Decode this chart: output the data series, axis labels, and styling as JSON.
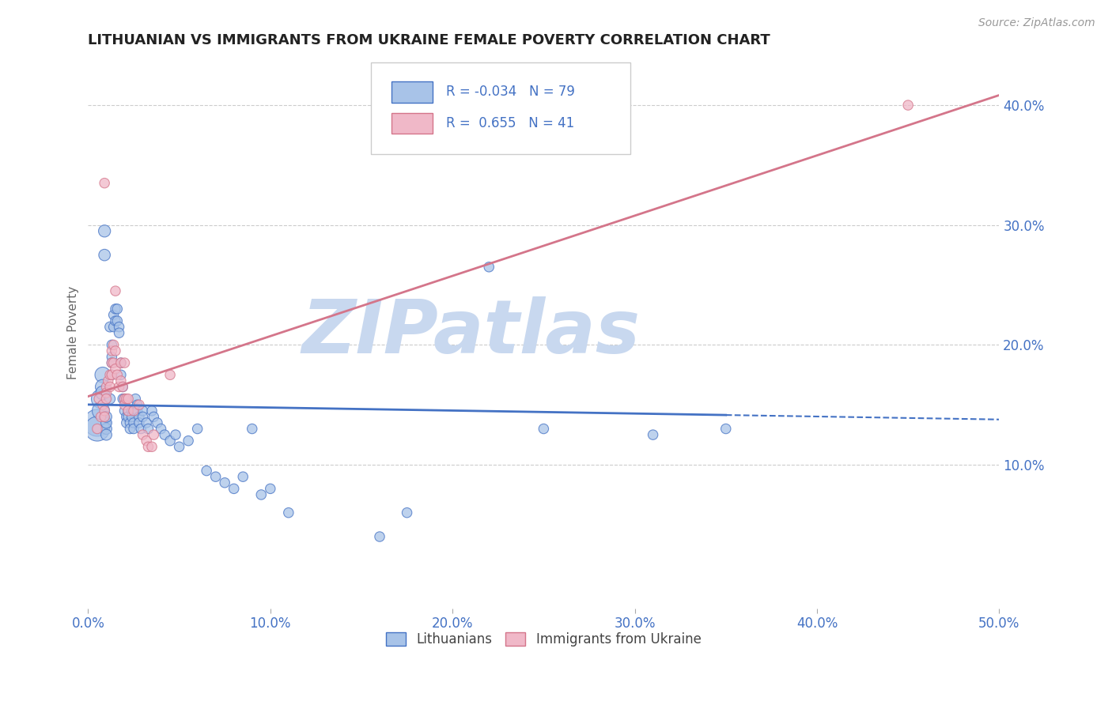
{
  "title": "LITHUANIAN VS IMMIGRANTS FROM UKRAINE FEMALE POVERTY CORRELATION CHART",
  "source": "Source: ZipAtlas.com",
  "ylabel": "Female Poverty",
  "xlim": [
    0.0,
    0.5
  ],
  "ylim": [
    -0.02,
    0.44
  ],
  "xticks": [
    0.0,
    0.1,
    0.2,
    0.3,
    0.4,
    0.5
  ],
  "xticklabels": [
    "0.0%",
    "10.0%",
    "20.0%",
    "30.0%",
    "40.0%",
    "50.0%"
  ],
  "yticks_right": [
    0.1,
    0.2,
    0.3,
    0.4
  ],
  "ytick_right_labels": [
    "10.0%",
    "20.0%",
    "30.0%",
    "40.0%"
  ],
  "blue_color": "#4472c4",
  "pink_color": "#d4758a",
  "blue_fill": "#a8c3e8",
  "pink_fill": "#f0b8c8",
  "watermark": "ZIPatlas",
  "watermark_color": "#c8d8ef",
  "grid_color": "#cccccc",
  "blue_R": -0.034,
  "pink_R": 0.655,
  "blue_N": 79,
  "pink_N": 41,
  "blue_line_solid_end": 0.35,
  "blue_scatter": [
    [
      0.005,
      0.135
    ],
    [
      0.005,
      0.13
    ],
    [
      0.007,
      0.155
    ],
    [
      0.007,
      0.145
    ],
    [
      0.008,
      0.175
    ],
    [
      0.008,
      0.165
    ],
    [
      0.008,
      0.16
    ],
    [
      0.009,
      0.295
    ],
    [
      0.009,
      0.275
    ],
    [
      0.01,
      0.13
    ],
    [
      0.01,
      0.135
    ],
    [
      0.01,
      0.125
    ],
    [
      0.01,
      0.14
    ],
    [
      0.012,
      0.155
    ],
    [
      0.012,
      0.215
    ],
    [
      0.013,
      0.2
    ],
    [
      0.013,
      0.19
    ],
    [
      0.013,
      0.185
    ],
    [
      0.013,
      0.175
    ],
    [
      0.014,
      0.225
    ],
    [
      0.014,
      0.215
    ],
    [
      0.015,
      0.23
    ],
    [
      0.015,
      0.22
    ],
    [
      0.016,
      0.23
    ],
    [
      0.016,
      0.22
    ],
    [
      0.017,
      0.215
    ],
    [
      0.017,
      0.21
    ],
    [
      0.018,
      0.185
    ],
    [
      0.018,
      0.175
    ],
    [
      0.019,
      0.165
    ],
    [
      0.019,
      0.155
    ],
    [
      0.02,
      0.155
    ],
    [
      0.02,
      0.145
    ],
    [
      0.021,
      0.14
    ],
    [
      0.021,
      0.135
    ],
    [
      0.022,
      0.145
    ],
    [
      0.022,
      0.14
    ],
    [
      0.023,
      0.135
    ],
    [
      0.023,
      0.13
    ],
    [
      0.024,
      0.145
    ],
    [
      0.024,
      0.14
    ],
    [
      0.025,
      0.135
    ],
    [
      0.025,
      0.13
    ],
    [
      0.026,
      0.155
    ],
    [
      0.026,
      0.145
    ],
    [
      0.027,
      0.15
    ],
    [
      0.027,
      0.145
    ],
    [
      0.028,
      0.14
    ],
    [
      0.028,
      0.135
    ],
    [
      0.029,
      0.13
    ],
    [
      0.03,
      0.145
    ],
    [
      0.03,
      0.14
    ],
    [
      0.032,
      0.135
    ],
    [
      0.033,
      0.13
    ],
    [
      0.035,
      0.145
    ],
    [
      0.036,
      0.14
    ],
    [
      0.038,
      0.135
    ],
    [
      0.04,
      0.13
    ],
    [
      0.042,
      0.125
    ],
    [
      0.045,
      0.12
    ],
    [
      0.048,
      0.125
    ],
    [
      0.05,
      0.115
    ],
    [
      0.055,
      0.12
    ],
    [
      0.06,
      0.13
    ],
    [
      0.065,
      0.095
    ],
    [
      0.07,
      0.09
    ],
    [
      0.075,
      0.085
    ],
    [
      0.08,
      0.08
    ],
    [
      0.085,
      0.09
    ],
    [
      0.09,
      0.13
    ],
    [
      0.095,
      0.075
    ],
    [
      0.1,
      0.08
    ],
    [
      0.11,
      0.06
    ],
    [
      0.16,
      0.04
    ],
    [
      0.175,
      0.06
    ],
    [
      0.22,
      0.265
    ],
    [
      0.25,
      0.13
    ],
    [
      0.31,
      0.125
    ],
    [
      0.35,
      0.13
    ]
  ],
  "blue_sizes": [
    600,
    500,
    300,
    250,
    200,
    180,
    160,
    120,
    110,
    100,
    100,
    100,
    100,
    90,
    85,
    80,
    80,
    80,
    80,
    80,
    80,
    80,
    80,
    80,
    80,
    80,
    80,
    80,
    80,
    80,
    80,
    80,
    80,
    80,
    80,
    80,
    80,
    80,
    80,
    80,
    80,
    80,
    80,
    80,
    80,
    80,
    80,
    80,
    80,
    80,
    80,
    80,
    80,
    80,
    80,
    80,
    80,
    80,
    80,
    80,
    80,
    80,
    80,
    80,
    80,
    80,
    80,
    80,
    80,
    80,
    80,
    80,
    80,
    80,
    80,
    80,
    80,
    80,
    80
  ],
  "pink_scatter": [
    [
      0.005,
      0.13
    ],
    [
      0.006,
      0.155
    ],
    [
      0.007,
      0.14
    ],
    [
      0.008,
      0.15
    ],
    [
      0.009,
      0.145
    ],
    [
      0.009,
      0.14
    ],
    [
      0.01,
      0.165
    ],
    [
      0.01,
      0.16
    ],
    [
      0.01,
      0.155
    ],
    [
      0.011,
      0.17
    ],
    [
      0.012,
      0.165
    ],
    [
      0.012,
      0.175
    ],
    [
      0.013,
      0.185
    ],
    [
      0.013,
      0.195
    ],
    [
      0.013,
      0.175
    ],
    [
      0.014,
      0.2
    ],
    [
      0.014,
      0.185
    ],
    [
      0.015,
      0.195
    ],
    [
      0.015,
      0.18
    ],
    [
      0.016,
      0.175
    ],
    [
      0.017,
      0.165
    ],
    [
      0.018,
      0.185
    ],
    [
      0.018,
      0.17
    ],
    [
      0.019,
      0.165
    ],
    [
      0.02,
      0.155
    ],
    [
      0.02,
      0.15
    ],
    [
      0.021,
      0.155
    ],
    [
      0.022,
      0.145
    ],
    [
      0.022,
      0.155
    ],
    [
      0.025,
      0.145
    ],
    [
      0.028,
      0.15
    ],
    [
      0.03,
      0.125
    ],
    [
      0.032,
      0.12
    ],
    [
      0.033,
      0.115
    ],
    [
      0.035,
      0.115
    ],
    [
      0.036,
      0.125
    ],
    [
      0.009,
      0.335
    ],
    [
      0.015,
      0.245
    ],
    [
      0.02,
      0.185
    ],
    [
      0.045,
      0.175
    ],
    [
      0.45,
      0.4
    ]
  ],
  "pink_sizes": [
    80,
    80,
    80,
    80,
    80,
    80,
    80,
    80,
    80,
    80,
    80,
    80,
    80,
    80,
    80,
    80,
    80,
    80,
    80,
    80,
    80,
    80,
    80,
    80,
    80,
    80,
    80,
    80,
    80,
    80,
    80,
    80,
    80,
    80,
    80,
    80,
    80,
    80,
    80,
    80,
    80
  ],
  "legend_label_blue": "Lithuanians",
  "legend_label_pink": "Immigrants from Ukraine"
}
